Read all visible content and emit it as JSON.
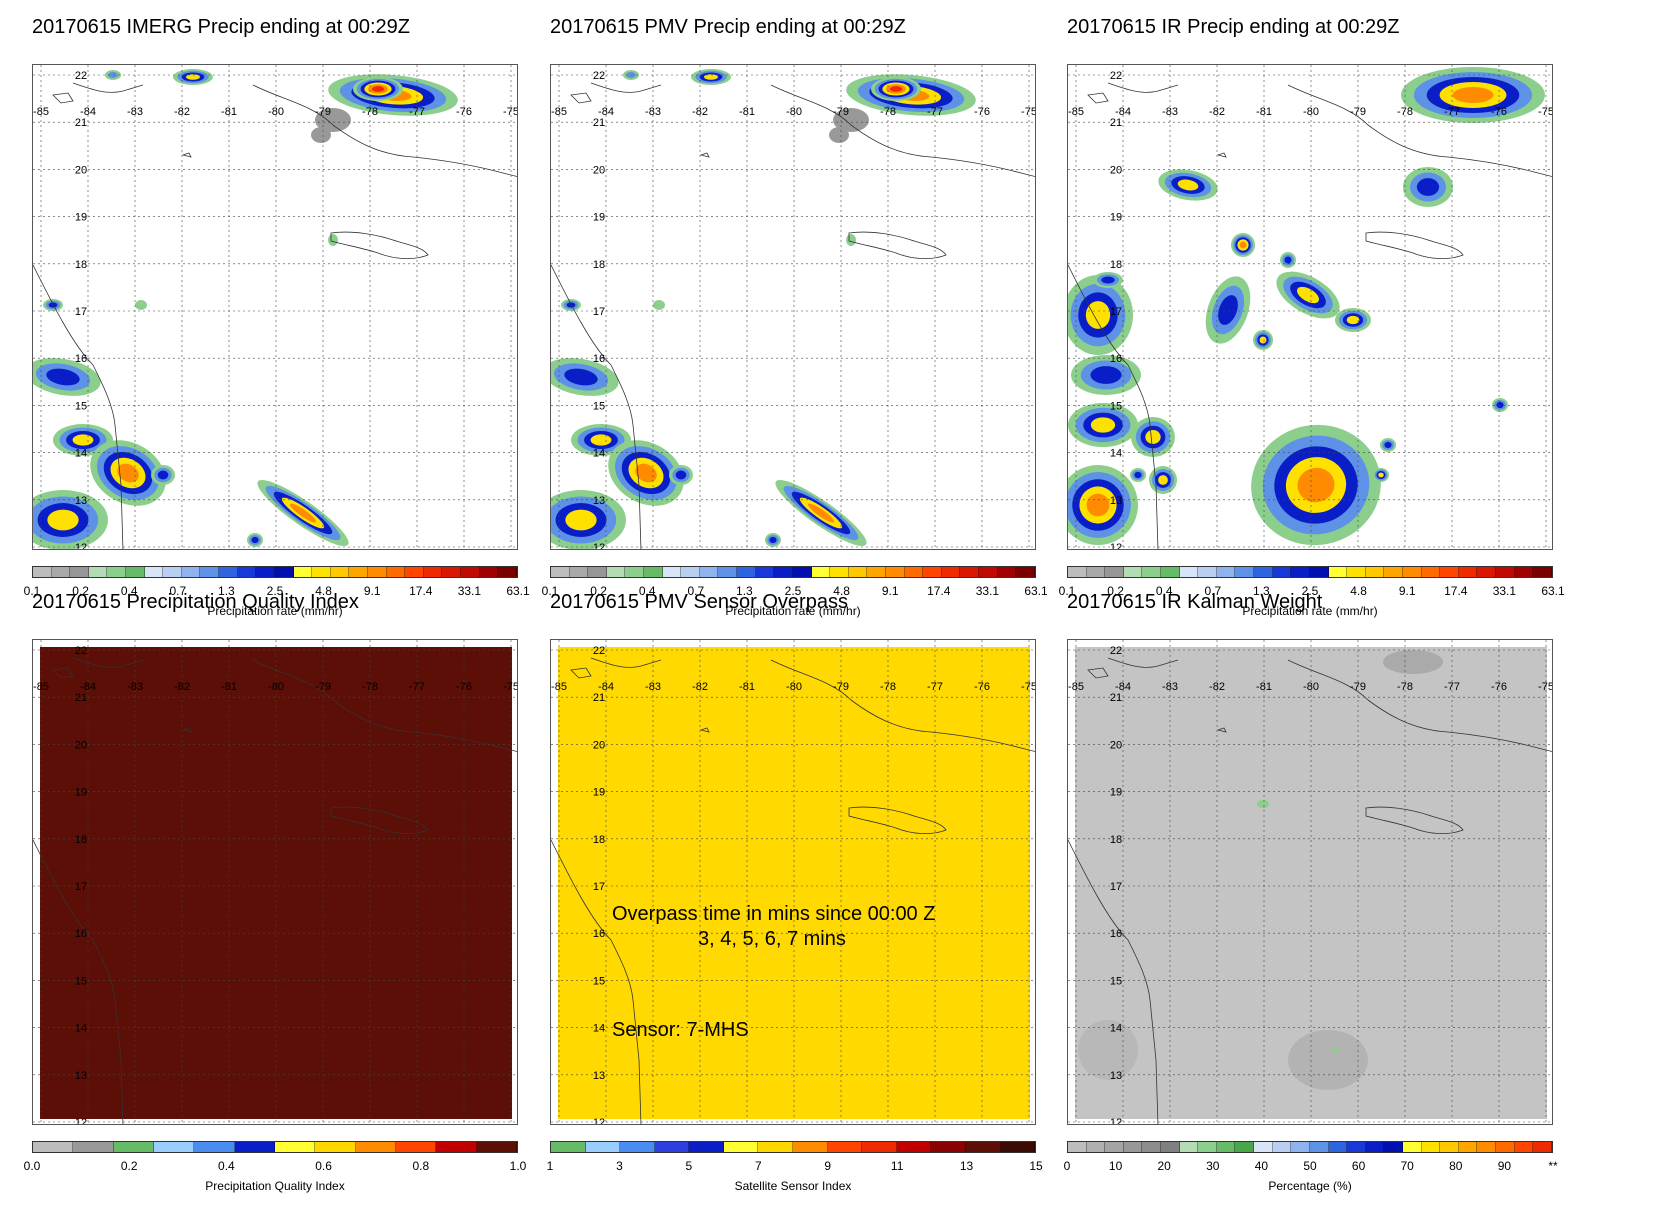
{
  "panels": [
    {
      "id": "imerg",
      "title": "20170615 IMERG Precip ending at 00:29Z",
      "colorbar": {
        "label": "Precipitation rate (mm/hr)",
        "ticks": [
          "0.1",
          "0.2",
          "0.4",
          "0.7",
          "1.3",
          "2.5",
          "4.8",
          "9.1",
          "17.4",
          "33.1",
          "63.1"
        ],
        "colors": [
          "#bdbdbd",
          "#a9a9a9",
          "#969696",
          "#b4dcb4",
          "#8ccf8c",
          "#66bb66",
          "#d8e4f8",
          "#b8cff2",
          "#8eb3ee",
          "#5e92e6",
          "#2e64e0",
          "#1838d8",
          "#0a1ec8",
          "#0010b0",
          "#ffff33",
          "#ffe100",
          "#ffc800",
          "#ffa500",
          "#ff8c00",
          "#ff6a00",
          "#ff4500",
          "#f02a00",
          "#d81800",
          "#c00a00",
          "#a00000",
          "#7a0000"
        ]
      }
    },
    {
      "id": "pmv",
      "title": "20170615 PMV Precip ending at 00:29Z",
      "colorbar": {
        "label": "Precipitation rate (mm/hr)",
        "ticks": [
          "0.1",
          "0.2",
          "0.4",
          "0.7",
          "1.3",
          "2.5",
          "4.8",
          "9.1",
          "17.4",
          "33.1",
          "63.1"
        ],
        "colors": [
          "#bdbdbd",
          "#a9a9a9",
          "#969696",
          "#b4dcb4",
          "#8ccf8c",
          "#66bb66",
          "#d8e4f8",
          "#b8cff2",
          "#8eb3ee",
          "#5e92e6",
          "#2e64e0",
          "#1838d8",
          "#0a1ec8",
          "#0010b0",
          "#ffff33",
          "#ffe100",
          "#ffc800",
          "#ffa500",
          "#ff8c00",
          "#ff6a00",
          "#ff4500",
          "#f02a00",
          "#d81800",
          "#c00a00",
          "#a00000",
          "#7a0000"
        ]
      }
    },
    {
      "id": "ir",
      "title": "20170615 IR Precip ending at 00:29Z",
      "colorbar": {
        "label": "Precipitation rate (mm/hr)",
        "ticks": [
          "0.1",
          "0.2",
          "0.4",
          "0.7",
          "1.3",
          "2.5",
          "4.8",
          "9.1",
          "17.4",
          "33.1",
          "63.1"
        ],
        "colors": [
          "#bdbdbd",
          "#a9a9a9",
          "#969696",
          "#b4dcb4",
          "#8ccf8c",
          "#66bb66",
          "#d8e4f8",
          "#b8cff2",
          "#8eb3ee",
          "#5e92e6",
          "#2e64e0",
          "#1838d8",
          "#0a1ec8",
          "#0010b0",
          "#ffff33",
          "#ffe100",
          "#ffc800",
          "#ffa500",
          "#ff8c00",
          "#ff6a00",
          "#ff4500",
          "#f02a00",
          "#d81800",
          "#c00a00",
          "#a00000",
          "#7a0000"
        ]
      }
    },
    {
      "id": "pqi",
      "title": "20170615 Precipitation Quality Index",
      "fill_color": "#5c0f06",
      "colorbar": {
        "label": "Precipitation Quality Index",
        "ticks": [
          "0.0",
          "0.2",
          "0.4",
          "0.6",
          "0.8",
          "1.0"
        ],
        "colors": [
          "#bdbdbd",
          "#999999",
          "#66bb66",
          "#99ccff",
          "#4a8cf0",
          "#0a1ec8",
          "#ffff33",
          "#ffd700",
          "#ff8c00",
          "#ff4500",
          "#c00000",
          "#5c0f06"
        ]
      }
    },
    {
      "id": "sensor",
      "title": "20170615 PMV Sensor Overpass",
      "fill_color": "#ffd900",
      "note1": "Overpass time in mins since 00:00 Z",
      "note2": "3, 4, 5, 6, 7 mins",
      "note3": "Sensor:   7-MHS",
      "colorbar": {
        "label": "Satellite Sensor Index",
        "ticks": [
          "1",
          "3",
          "5",
          "7",
          "9",
          "11",
          "13",
          "15"
        ],
        "colors": [
          "#66bb66",
          "#99ccff",
          "#4a8cf0",
          "#2c3fe0",
          "#0a1ec8",
          "#ffff33",
          "#ffd700",
          "#ff8c00",
          "#ff4500",
          "#f02a00",
          "#c00000",
          "#8b0000",
          "#5c0f06",
          "#3c0a04"
        ]
      }
    },
    {
      "id": "kalman",
      "title": "20170615 IR Kalman Weight",
      "fill_color": "#c4c4c4",
      "colorbar": {
        "label": "Percentage (%)",
        "ticks": [
          "0",
          "10",
          "20",
          "30",
          "40",
          "50",
          "60",
          "70",
          "80",
          "90",
          "**"
        ],
        "colors": [
          "#bdbdbd",
          "#b0b0b0",
          "#a4a4a4",
          "#989898",
          "#8c8c8c",
          "#808080",
          "#b4dcb4",
          "#8ccf8c",
          "#66bb66",
          "#4aa64a",
          "#d8e4f8",
          "#b8cff2",
          "#8eb3ee",
          "#5e92e6",
          "#2e64e0",
          "#1838d8",
          "#0a1ec8",
          "#0010b0",
          "#ffff33",
          "#ffe100",
          "#ffc800",
          "#ffa500",
          "#ff8c00",
          "#ff6a00",
          "#ff4500",
          "#f02a00"
        ]
      }
    }
  ],
  "chart_data": {
    "type": "heatmap",
    "map_extent": {
      "lon": [
        -85,
        -75
      ],
      "lat": [
        12,
        22
      ]
    },
    "lon_labels": [
      "-85",
      "-84",
      "-83",
      "-82",
      "-81",
      "-80",
      "-79",
      "-78",
      "-77",
      "-76",
      "-75"
    ],
    "lat_labels": [
      "12",
      "13",
      "14",
      "15",
      "16",
      "17",
      "18",
      "19",
      "20",
      "21",
      "22"
    ],
    "grid": true
  }
}
